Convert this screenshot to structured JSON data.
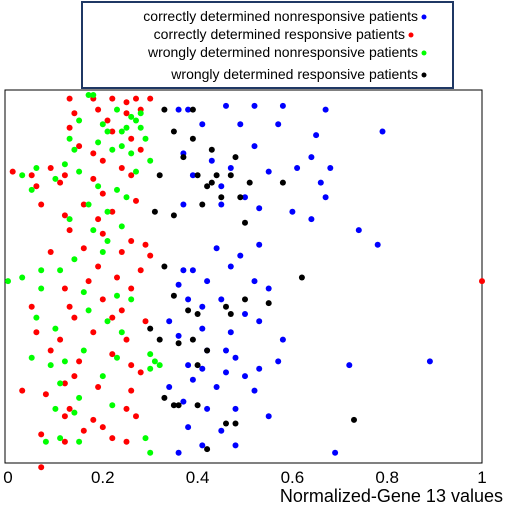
{
  "chart_data": {
    "type": "scatter",
    "xlabel": "Normalized-Gene 13 values",
    "ylabel": "",
    "xlim": [
      0,
      1
    ],
    "ylim": [
      0,
      1
    ],
    "xticks": [
      "0",
      "0.2",
      "0.4",
      "0.6",
      "0.8",
      "1"
    ],
    "grid": false,
    "legend_position": "top",
    "series": [
      {
        "name": "correctly determined nonresponsive patients",
        "color": "#0000ff",
        "points": [
          [
            0.36,
            0.96
          ],
          [
            0.38,
            0.96
          ],
          [
            0.46,
            0.97
          ],
          [
            0.52,
            0.97
          ],
          [
            0.58,
            0.97
          ],
          [
            0.67,
            0.96
          ],
          [
            0.41,
            0.92
          ],
          [
            0.49,
            0.92
          ],
          [
            0.57,
            0.92
          ],
          [
            0.65,
            0.89
          ],
          [
            0.79,
            0.9
          ],
          [
            0.37,
            0.84
          ],
          [
            0.43,
            0.82
          ],
          [
            0.52,
            0.86
          ],
          [
            0.64,
            0.83
          ],
          [
            0.39,
            0.78
          ],
          [
            0.45,
            0.75
          ],
          [
            0.47,
            0.8
          ],
          [
            0.55,
            0.79
          ],
          [
            0.61,
            0.8
          ],
          [
            0.66,
            0.76
          ],
          [
            0.68,
            0.8
          ],
          [
            0.37,
            0.7
          ],
          [
            0.45,
            0.7
          ],
          [
            0.5,
            0.72
          ],
          [
            0.53,
            0.69
          ],
          [
            0.67,
            0.72
          ],
          [
            0.6,
            0.68
          ],
          [
            0.64,
            0.66
          ],
          [
            0.74,
            0.63
          ],
          [
            0.78,
            0.59
          ],
          [
            0.44,
            0.58
          ],
          [
            0.49,
            0.56
          ],
          [
            0.53,
            0.59
          ],
          [
            0.37,
            0.52
          ],
          [
            0.36,
            0.48
          ],
          [
            0.39,
            0.52
          ],
          [
            0.42,
            0.49
          ],
          [
            0.47,
            0.53
          ],
          [
            0.52,
            0.49
          ],
          [
            0.55,
            0.47
          ],
          [
            0.38,
            0.44
          ],
          [
            0.41,
            0.42
          ],
          [
            0.45,
            0.44
          ],
          [
            0.5,
            0.4
          ],
          [
            0.34,
            0.38
          ],
          [
            0.36,
            0.34
          ],
          [
            0.41,
            0.36
          ],
          [
            0.47,
            0.35
          ],
          [
            0.53,
            0.38
          ],
          [
            0.58,
            0.33
          ],
          [
            0.42,
            0.3
          ],
          [
            0.46,
            0.3
          ],
          [
            0.48,
            0.28
          ],
          [
            0.53,
            0.25
          ],
          [
            0.57,
            0.27
          ],
          [
            0.38,
            0.26
          ],
          [
            0.39,
            0.22
          ],
          [
            0.41,
            0.25
          ],
          [
            0.44,
            0.2
          ],
          [
            0.46,
            0.24
          ],
          [
            0.5,
            0.23
          ],
          [
            0.34,
            0.2
          ],
          [
            0.37,
            0.16
          ],
          [
            0.42,
            0.14
          ],
          [
            0.48,
            0.14
          ],
          [
            0.52,
            0.19
          ],
          [
            0.72,
            0.26
          ],
          [
            0.89,
            0.27
          ],
          [
            0.38,
            0.09
          ],
          [
            0.45,
            0.08
          ],
          [
            0.41,
            0.04
          ],
          [
            0.36,
            0.02
          ],
          [
            0.48,
            0.04
          ],
          [
            0.55,
            0.12
          ],
          [
            0.69,
            0.02
          ]
        ]
      },
      {
        "name": "correctly determined responsive patients",
        "color": "#ff0000",
        "points": [
          [
            0.13,
            0.99
          ],
          [
            0.18,
            0.99
          ],
          [
            0.22,
            0.99
          ],
          [
            0.25,
            0.98
          ],
          [
            0.27,
            0.99
          ],
          [
            0.3,
            0.99
          ],
          [
            0.14,
            0.95
          ],
          [
            0.19,
            0.96
          ],
          [
            0.21,
            0.93
          ],
          [
            0.25,
            0.95
          ],
          [
            0.28,
            0.96
          ],
          [
            0.13,
            0.91
          ],
          [
            0.22,
            0.9
          ],
          [
            0.26,
            0.88
          ],
          [
            0.15,
            0.86
          ],
          [
            0.18,
            0.84
          ],
          [
            0.2,
            0.82
          ],
          [
            0.24,
            0.8
          ],
          [
            0.28,
            0.85
          ],
          [
            0.01,
            0.79
          ],
          [
            0.05,
            0.78
          ],
          [
            0.09,
            0.8
          ],
          [
            0.12,
            0.78
          ],
          [
            0.06,
            0.75
          ],
          [
            0.11,
            0.76
          ],
          [
            0.18,
            0.77
          ],
          [
            0.2,
            0.73
          ],
          [
            0.26,
            0.78
          ],
          [
            0.07,
            0.7
          ],
          [
            0.12,
            0.67
          ],
          [
            0.16,
            0.7
          ],
          [
            0.19,
            0.66
          ],
          [
            0.22,
            0.68
          ],
          [
            0.27,
            0.71
          ],
          [
            0.13,
            0.63
          ],
          [
            0.2,
            0.62
          ],
          [
            0.26,
            0.6
          ],
          [
            0.09,
            0.57
          ],
          [
            0.16,
            0.58
          ],
          [
            0.24,
            0.57
          ],
          [
            0.29,
            0.59
          ],
          [
            0.3,
            0.56
          ],
          [
            0.19,
            0.53
          ],
          [
            0.23,
            0.5
          ],
          [
            0.28,
            0.52
          ],
          [
            0.12,
            0.47
          ],
          [
            0.17,
            0.49
          ],
          [
            0.26,
            0.47
          ],
          [
            0.05,
            0.42
          ],
          [
            0.13,
            0.42
          ],
          [
            0.2,
            0.44
          ],
          [
            0.24,
            0.41
          ],
          [
            0.14,
            0.39
          ],
          [
            0.22,
            0.39
          ],
          [
            0.29,
            0.38
          ],
          [
            0.06,
            0.35
          ],
          [
            0.11,
            0.33
          ],
          [
            0.18,
            0.35
          ],
          [
            0.25,
            0.33
          ],
          [
            0.09,
            0.3
          ],
          [
            0.15,
            0.27
          ],
          [
            0.22,
            0.29
          ],
          [
            0.26,
            0.26
          ],
          [
            0.14,
            0.23
          ],
          [
            0.19,
            0.2
          ],
          [
            0.28,
            0.24
          ],
          [
            0.03,
            0.19
          ],
          [
            0.08,
            0.18
          ],
          [
            0.12,
            0.21
          ],
          [
            0.26,
            0.19
          ],
          [
            0.13,
            0.14
          ],
          [
            0.18,
            0.11
          ],
          [
            0.25,
            0.14
          ],
          [
            0.27,
            0.12
          ],
          [
            0.12,
            0.12
          ],
          [
            0.16,
            0.08
          ],
          [
            0.2,
            0.09
          ],
          [
            0.07,
            0.07
          ],
          [
            0.22,
            0.06
          ],
          [
            0.12,
            0.05
          ],
          [
            0.25,
            0.05
          ],
          [
            0.07,
            -0.02
          ],
          [
            1.0,
            0.49
          ]
        ]
      },
      {
        "name": "wrongly determined nonresponsive patients",
        "color": "#00ff00",
        "points": [
          [
            0.17,
            1.0
          ],
          [
            0.18,
            1.0
          ],
          [
            0.23,
            0.96
          ],
          [
            0.26,
            0.94
          ],
          [
            0.28,
            0.95
          ],
          [
            0.27,
            0.93
          ],
          [
            0.25,
            0.91
          ],
          [
            0.24,
            0.9
          ],
          [
            0.28,
            0.91
          ],
          [
            0.15,
            0.93
          ],
          [
            0.2,
            0.92
          ],
          [
            0.21,
            0.9
          ],
          [
            0.13,
            0.88
          ],
          [
            0.19,
            0.87
          ],
          [
            0.24,
            0.86
          ],
          [
            0.29,
            0.88
          ],
          [
            0.26,
            0.84
          ],
          [
            0.3,
            0.82
          ],
          [
            0.14,
            0.85
          ],
          [
            0.22,
            0.85
          ],
          [
            0.12,
            0.81
          ],
          [
            0.06,
            0.8
          ],
          [
            0.27,
            0.79
          ],
          [
            0.03,
            0.78
          ],
          [
            0.05,
            0.74
          ],
          [
            0.1,
            0.77
          ],
          [
            0.15,
            0.79
          ],
          [
            0.19,
            0.75
          ],
          [
            0.23,
            0.74
          ],
          [
            0.25,
            0.72
          ],
          [
            0.17,
            0.7
          ],
          [
            0.21,
            0.68
          ],
          [
            0.13,
            0.66
          ],
          [
            0.24,
            0.64
          ],
          [
            0.18,
            0.63
          ],
          [
            0.21,
            0.6
          ],
          [
            0.2,
            0.57
          ],
          [
            0.14,
            0.55
          ],
          [
            0.11,
            0.52
          ],
          [
            0.07,
            0.52
          ],
          [
            0.03,
            0.5
          ],
          [
            0.0,
            0.49
          ],
          [
            0.07,
            0.47
          ],
          [
            0.16,
            0.46
          ],
          [
            0.23,
            0.45
          ],
          [
            0.26,
            0.44
          ],
          [
            0.06,
            0.39
          ],
          [
            0.17,
            0.41
          ],
          [
            0.21,
            0.38
          ],
          [
            0.1,
            0.36
          ],
          [
            0.24,
            0.35
          ],
          [
            0.16,
            0.3
          ],
          [
            0.23,
            0.28
          ],
          [
            0.12,
            0.27
          ],
          [
            0.3,
            0.29
          ],
          [
            0.31,
            0.27
          ],
          [
            0.05,
            0.28
          ],
          [
            0.32,
            0.26
          ],
          [
            0.09,
            0.26
          ],
          [
            0.11,
            0.21
          ],
          [
            0.2,
            0.23
          ],
          [
            0.3,
            0.25
          ],
          [
            0.15,
            0.17
          ],
          [
            0.22,
            0.15
          ],
          [
            0.1,
            0.14
          ],
          [
            0.14,
            0.13
          ],
          [
            0.29,
            0.06
          ],
          [
            0.08,
            0.05
          ],
          [
            0.15,
            0.05
          ],
          [
            0.11,
            0.06
          ],
          [
            0.3,
            0.02
          ]
        ]
      },
      {
        "name": "wrongly determined responsive patients",
        "color": "#000000",
        "points": [
          [
            0.33,
            0.96
          ],
          [
            0.39,
            0.96
          ],
          [
            0.35,
            0.9
          ],
          [
            0.39,
            0.88
          ],
          [
            0.43,
            0.85
          ],
          [
            0.48,
            0.83
          ],
          [
            0.37,
            0.83
          ],
          [
            0.32,
            0.78
          ],
          [
            0.4,
            0.78
          ],
          [
            0.43,
            0.76
          ],
          [
            0.44,
            0.78
          ],
          [
            0.47,
            0.78
          ],
          [
            0.42,
            0.75
          ],
          [
            0.49,
            0.72
          ],
          [
            0.51,
            0.76
          ],
          [
            0.58,
            0.76
          ],
          [
            0.41,
            0.7
          ],
          [
            0.45,
            0.72
          ],
          [
            0.31,
            0.68
          ],
          [
            0.35,
            0.67
          ],
          [
            0.5,
            0.65
          ],
          [
            0.33,
            0.53
          ],
          [
            0.62,
            0.5
          ],
          [
            0.35,
            0.45
          ],
          [
            0.38,
            0.41
          ],
          [
            0.4,
            0.4
          ],
          [
            0.5,
            0.44
          ],
          [
            0.55,
            0.43
          ],
          [
            0.46,
            0.42
          ],
          [
            0.47,
            0.4
          ],
          [
            0.3,
            0.36
          ],
          [
            0.32,
            0.33
          ],
          [
            0.36,
            0.32
          ],
          [
            0.39,
            0.33
          ],
          [
            0.42,
            0.3
          ],
          [
            0.4,
            0.26
          ],
          [
            0.33,
            0.17
          ],
          [
            0.35,
            0.15
          ],
          [
            0.36,
            0.15
          ],
          [
            0.4,
            0.15
          ],
          [
            0.46,
            0.1
          ],
          [
            0.48,
            0.1
          ],
          [
            0.73,
            0.11
          ],
          [
            0.42,
            0.03
          ]
        ]
      }
    ]
  }
}
